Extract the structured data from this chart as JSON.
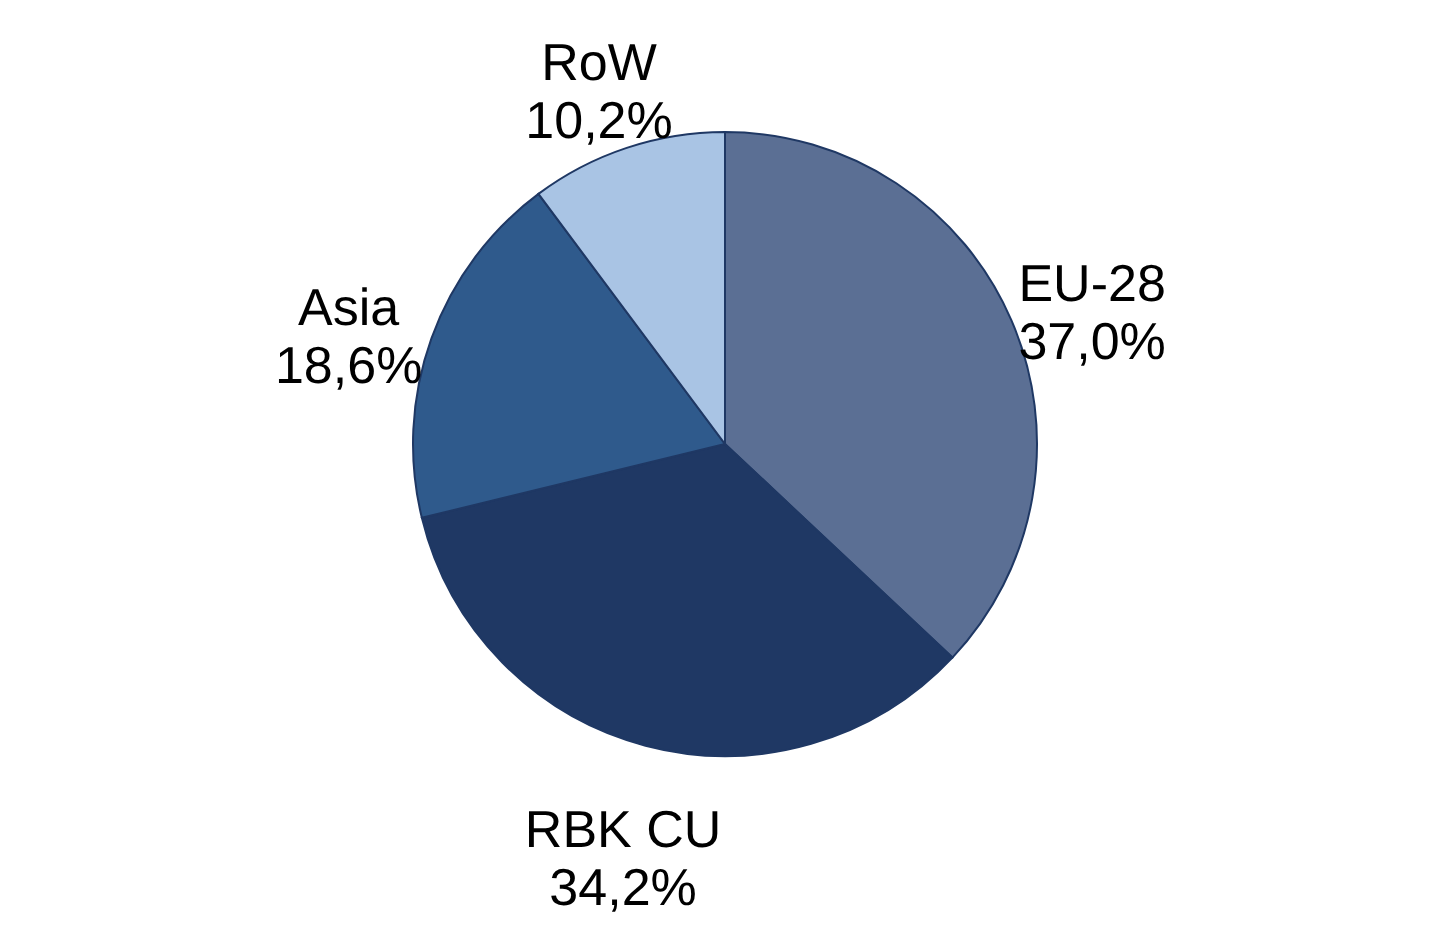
{
  "chart_data": {
    "type": "pie",
    "categories": [
      "EU-28",
      "RBK CU",
      "Asia",
      "RoW"
    ],
    "values": [
      37.0,
      34.2,
      18.6,
      10.2
    ],
    "colors": [
      "#5b6f94",
      "#1f3864",
      "#2f5a8c",
      "#a9c4e4"
    ],
    "value_labels": [
      "37,0%",
      "34,2%",
      "18,6%",
      "10,2%"
    ]
  }
}
